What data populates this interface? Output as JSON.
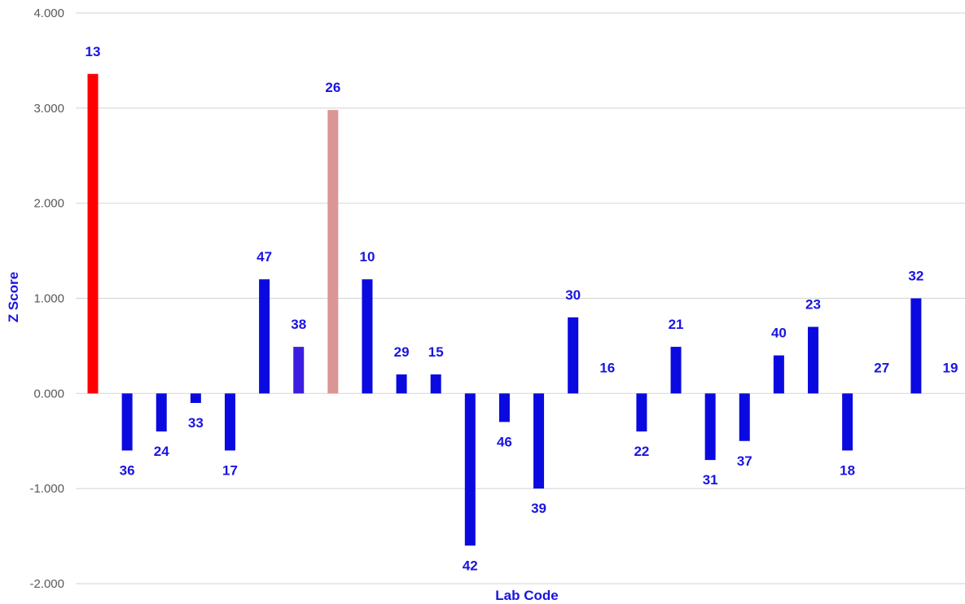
{
  "chart_data": {
    "type": "bar",
    "title": "",
    "xlabel": "Lab Code",
    "ylabel": "Z Score",
    "ylim": [
      -2,
      4
    ],
    "yticks": [
      4,
      3,
      2,
      1,
      0,
      -1,
      -2
    ],
    "ytick_labels": [
      "4.000",
      "3.000",
      "2.000",
      "1.000",
      "0.000",
      "-1.000",
      "-2.000"
    ],
    "grid": true,
    "legend": "none",
    "categories": [
      "13",
      "36",
      "24",
      "33",
      "17",
      "47",
      "38",
      "26",
      "10",
      "29",
      "15",
      "42",
      "46",
      "39",
      "30",
      "16",
      "22",
      "21",
      "31",
      "37",
      "40",
      "23",
      "18",
      "27",
      "32",
      "19"
    ],
    "values": [
      3.36,
      -0.6,
      -0.4,
      -0.1,
      -0.6,
      1.2,
      0.49,
      2.98,
      1.2,
      0.2,
      0.2,
      -1.6,
      -0.3,
      -1.0,
      0.8,
      0.0,
      -0.4,
      0.49,
      -0.7,
      -0.5,
      0.4,
      0.7,
      -0.6,
      0.0,
      1.0,
      0.0
    ],
    "bar_colors": [
      "#ff0000",
      "#0a0ae0",
      "#0a0ae0",
      "#0a0ae0",
      "#0a0ae0",
      "#0a0ae0",
      "#3b1ee0",
      "#d99694",
      "#0a0ae0",
      "#0a0ae0",
      "#0a0ae0",
      "#0a0ae0",
      "#0a0ae0",
      "#0a0ae0",
      "#0a0ae0",
      "#0a0ae0",
      "#0a0ae0",
      "#0a0ae0",
      "#0a0ae0",
      "#0a0ae0",
      "#0a0ae0",
      "#0a0ae0",
      "#0a0ae0",
      "#0a0ae0",
      "#0a0ae0",
      "#0a0ae0"
    ]
  },
  "colors": {
    "label": "#1a14e0",
    "grid": "#d9d9d9",
    "tick": "#595959"
  }
}
